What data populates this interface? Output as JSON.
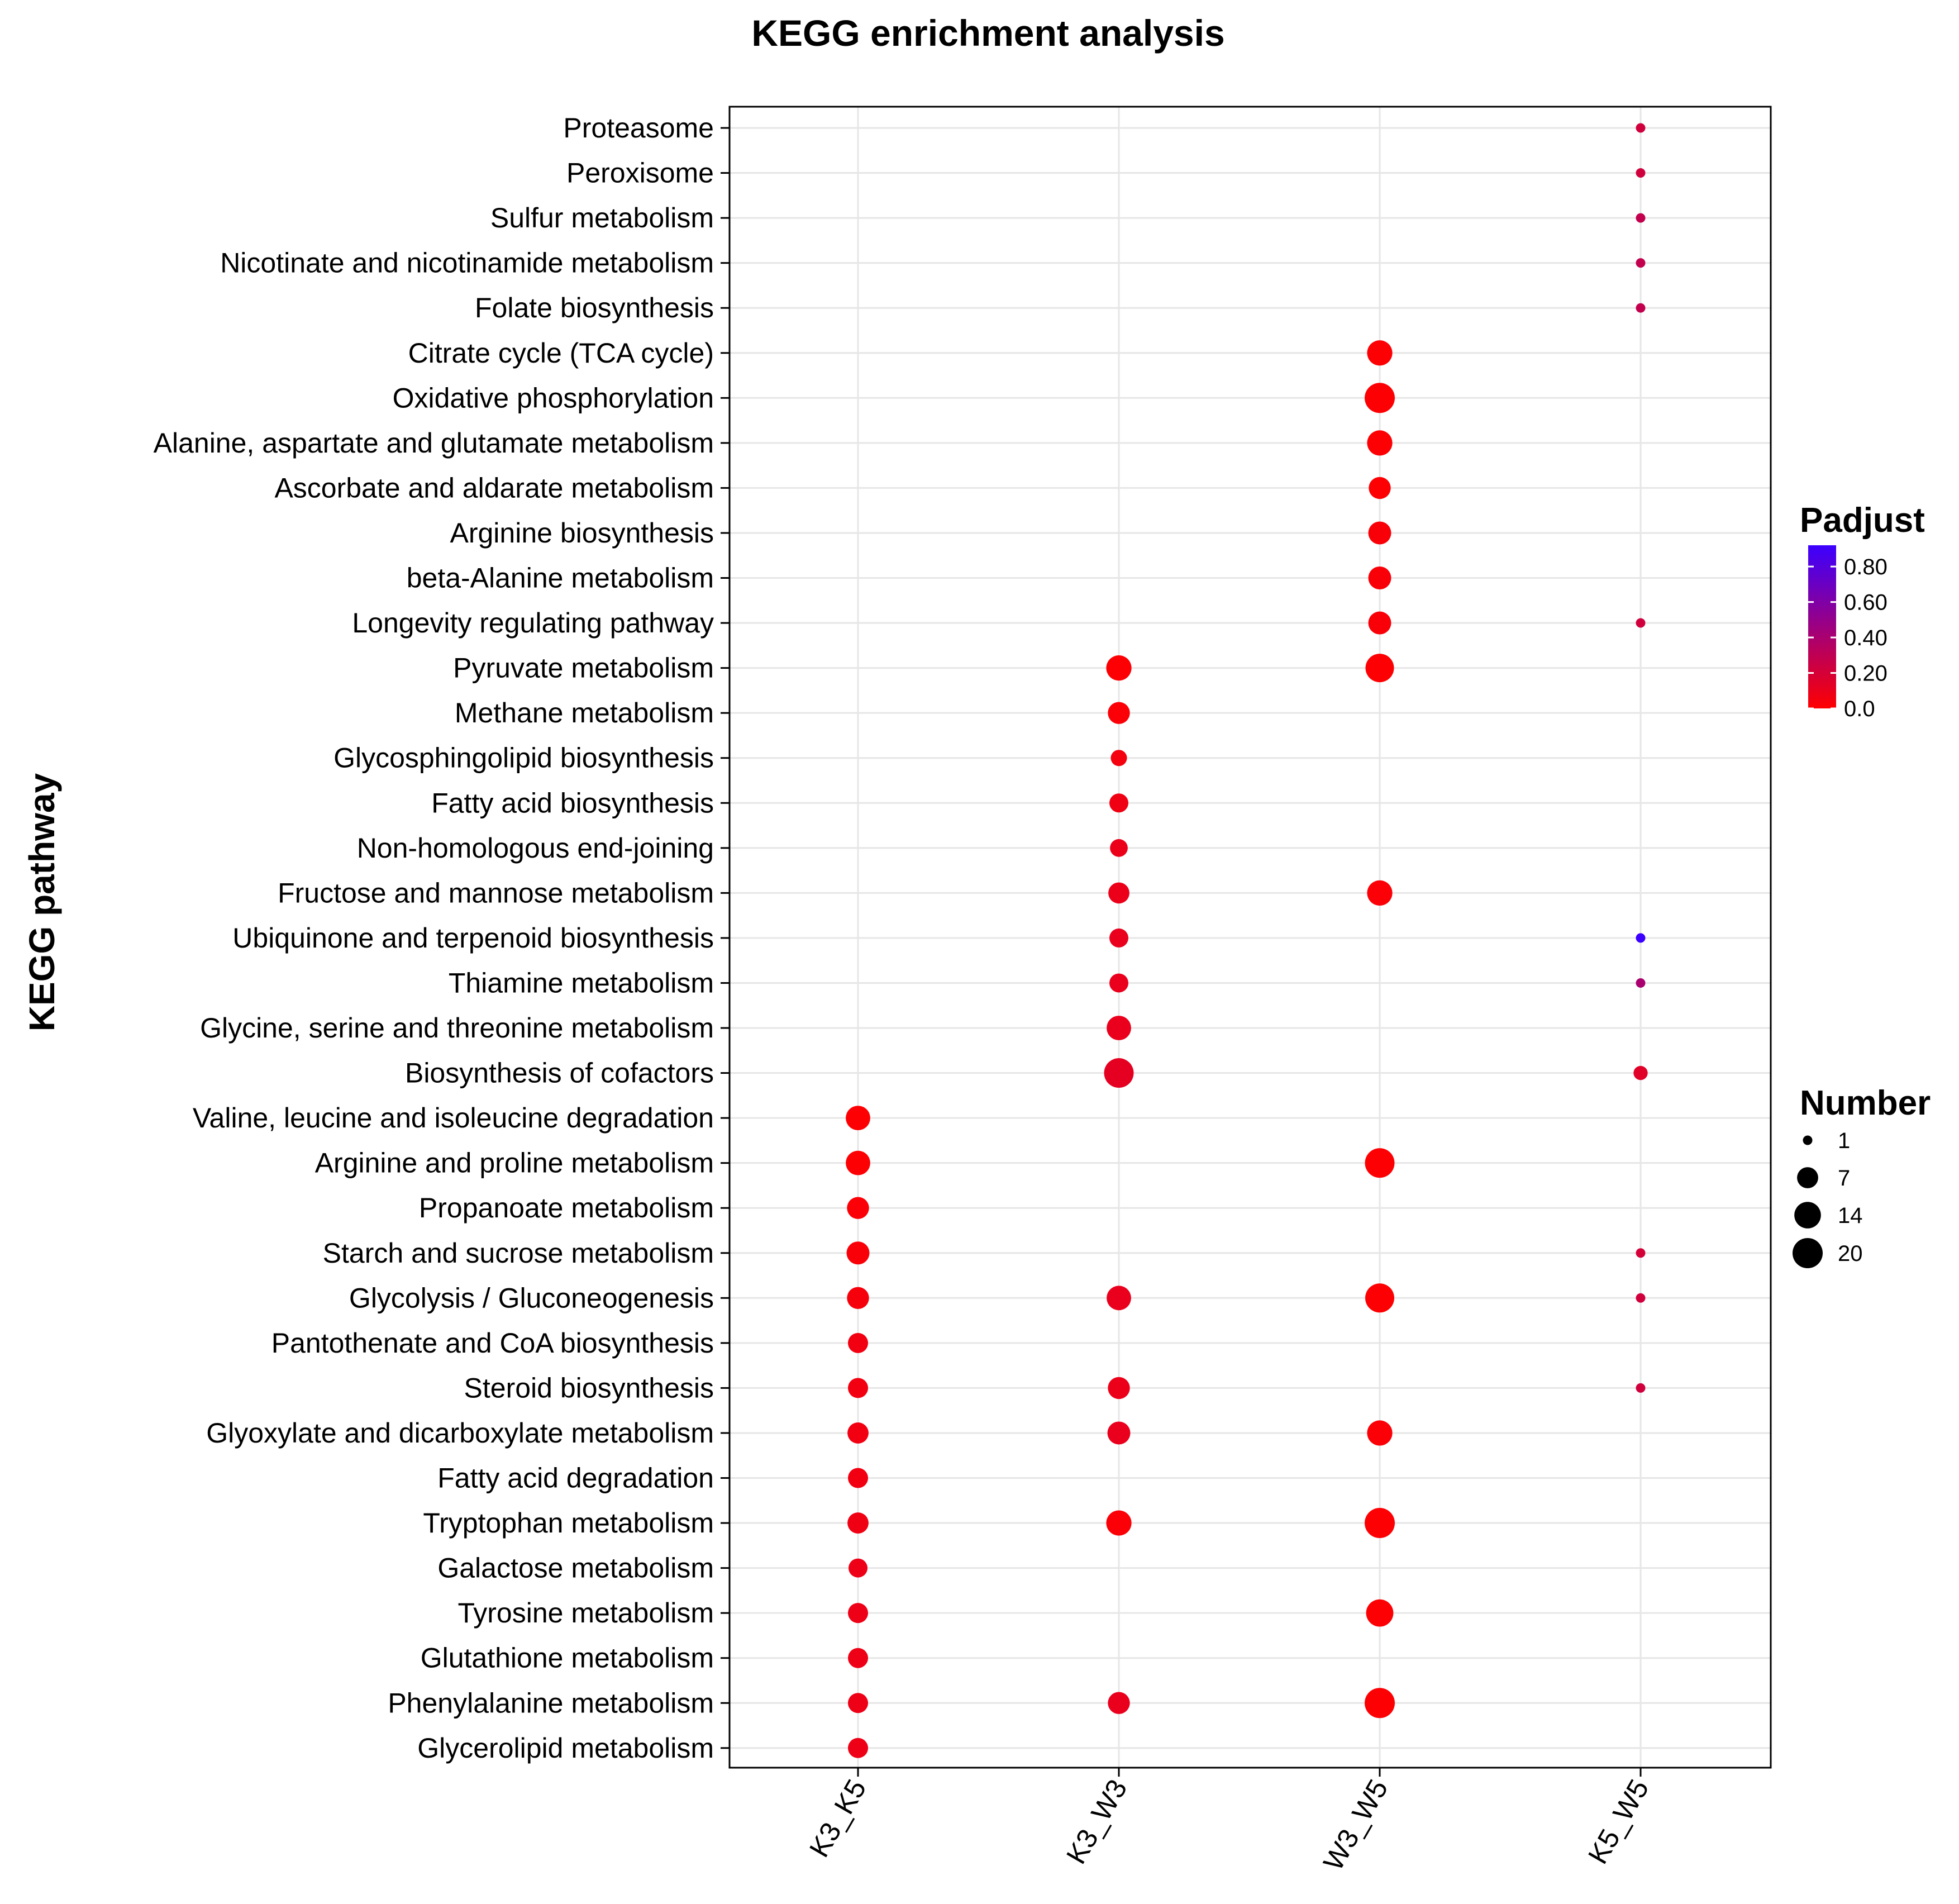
{
  "chart_data": {
    "type": "scatter",
    "title": "KEGG enrichment analysis",
    "xlabel": "",
    "ylabel": "KEGG pathway",
    "grid": true,
    "categories_x": [
      "K3_K5",
      "K3_W3",
      "W3_W5",
      "K5_W5"
    ],
    "categories_y": [
      "Proteasome",
      "Peroxisome",
      "Sulfur metabolism",
      "Nicotinate and nicotinamide metabolism",
      "Folate biosynthesis",
      "Citrate cycle (TCA cycle)",
      "Oxidative phosphorylation",
      "Alanine, aspartate and glutamate metabolism",
      "Ascorbate and aldarate metabolism",
      "Arginine biosynthesis",
      "beta-Alanine metabolism",
      "Longevity regulating pathway",
      "Pyruvate metabolism",
      "Methane metabolism",
      "Glycosphingolipid biosynthesis",
      "Fatty acid biosynthesis",
      "Non-homologous end-joining",
      "Fructose and mannose metabolism",
      "Ubiquinone and terpenoid biosynthesis",
      "Thiamine metabolism",
      "Glycine, serine and threonine metabolism",
      "Biosynthesis of cofactors",
      "Valine, leucine and isoleucine degradation",
      "Arginine and proline metabolism",
      "Propanoate metabolism",
      "Starch and sucrose metabolism",
      "Glycolysis / Gluconeogenesis",
      "Pantothenate and CoA biosynthesis",
      "Steroid biosynthesis",
      "Glyoxylate and dicarboxylate metabolism",
      "Fatty acid degradation",
      "Tryptophan metabolism",
      "Galactose metabolism",
      "Tyrosine metabolism",
      "Glutathione metabolism",
      "Phenylalanine metabolism",
      "Glycerolipid metabolism"
    ],
    "points": [
      {
        "pathway": "Proteasome",
        "group": "K5_W5",
        "number": 1,
        "padjust": 0.22
      },
      {
        "pathway": "Peroxisome",
        "group": "K5_W5",
        "number": 1,
        "padjust": 0.22
      },
      {
        "pathway": "Sulfur metabolism",
        "group": "K5_W5",
        "number": 1,
        "padjust": 0.28
      },
      {
        "pathway": "Nicotinate and nicotinamide metabolism",
        "group": "K5_W5",
        "number": 1,
        "padjust": 0.28
      },
      {
        "pathway": "Folate biosynthesis",
        "group": "K5_W5",
        "number": 1,
        "padjust": 0.28
      },
      {
        "pathway": "Citrate cycle (TCA cycle)",
        "group": "W3_W5",
        "number": 12,
        "padjust": 0.01
      },
      {
        "pathway": "Oxidative phosphorylation",
        "group": "W3_W5",
        "number": 20,
        "padjust": 0.01
      },
      {
        "pathway": "Alanine, aspartate and glutamate metabolism",
        "group": "W3_W5",
        "number": 12,
        "padjust": 0.01
      },
      {
        "pathway": "Ascorbate and aldarate metabolism",
        "group": "W3_W5",
        "number": 8,
        "padjust": 0.01
      },
      {
        "pathway": "Arginine biosynthesis",
        "group": "W3_W5",
        "number": 9,
        "padjust": 0.03
      },
      {
        "pathway": "beta-Alanine metabolism",
        "group": "W3_W5",
        "number": 9,
        "padjust": 0.03
      },
      {
        "pathway": "Longevity regulating pathway",
        "group": "W3_W5",
        "number": 9,
        "padjust": 0.03
      },
      {
        "pathway": "Longevity regulating pathway",
        "group": "K5_W5",
        "number": 1,
        "padjust": 0.22
      },
      {
        "pathway": "Pyruvate metabolism",
        "group": "K3_W3",
        "number": 12,
        "padjust": 0.01
      },
      {
        "pathway": "Pyruvate metabolism",
        "group": "W3_W5",
        "number": 17,
        "padjust": 0.01
      },
      {
        "pathway": "Methane metabolism",
        "group": "K3_W3",
        "number": 8,
        "padjust": 0.02
      },
      {
        "pathway": "Glycosphingolipid biosynthesis",
        "group": "K3_W3",
        "number": 3,
        "padjust": 0.05
      },
      {
        "pathway": "Fatty acid biosynthesis",
        "group": "K3_W3",
        "number": 5,
        "padjust": 0.07
      },
      {
        "pathway": "Non-homologous end-joining",
        "group": "K3_W3",
        "number": 4,
        "padjust": 0.09
      },
      {
        "pathway": "Fructose and mannose metabolism",
        "group": "K3_W3",
        "number": 7,
        "padjust": 0.09
      },
      {
        "pathway": "Fructose and mannose metabolism",
        "group": "W3_W5",
        "number": 12,
        "padjust": 0.02
      },
      {
        "pathway": "Ubiquinone and terpenoid biosynthesis",
        "group": "K3_W3",
        "number": 5,
        "padjust": 0.1
      },
      {
        "pathway": "Ubiquinone and terpenoid biosynthesis",
        "group": "K5_W5",
        "number": 1,
        "padjust": 0.92
      },
      {
        "pathway": "Thiamine metabolism",
        "group": "K3_W3",
        "number": 5,
        "padjust": 0.1
      },
      {
        "pathway": "Thiamine metabolism",
        "group": "K5_W5",
        "number": 1,
        "padjust": 0.4
      },
      {
        "pathway": "Glycine, serine and threonine metabolism",
        "group": "K3_W3",
        "number": 11,
        "padjust": 0.1
      },
      {
        "pathway": "Biosynthesis of cofactors",
        "group": "K3_W3",
        "number": 19,
        "padjust": 0.12
      },
      {
        "pathway": "Biosynthesis of cofactors",
        "group": "K5_W5",
        "number": 2,
        "padjust": 0.14
      },
      {
        "pathway": "Valine, leucine and isoleucine degradation",
        "group": "K3_K5",
        "number": 11,
        "padjust": 0.01
      },
      {
        "pathway": "Arginine and proline metabolism",
        "group": "K3_K5",
        "number": 11,
        "padjust": 0.01
      },
      {
        "pathway": "Arginine and proline metabolism",
        "group": "W3_W5",
        "number": 19,
        "padjust": 0.01
      },
      {
        "pathway": "Propanoate metabolism",
        "group": "K3_K5",
        "number": 8,
        "padjust": 0.02
      },
      {
        "pathway": "Starch and sucrose metabolism",
        "group": "K3_K5",
        "number": 9,
        "padjust": 0.03
      },
      {
        "pathway": "Starch and sucrose metabolism",
        "group": "K5_W5",
        "number": 1,
        "padjust": 0.2
      },
      {
        "pathway": "Glycolysis / Gluconeogenesis",
        "group": "K3_K5",
        "number": 8,
        "padjust": 0.04
      },
      {
        "pathway": "Glycolysis / Gluconeogenesis",
        "group": "K3_W3",
        "number": 11,
        "padjust": 0.1
      },
      {
        "pathway": "Glycolysis / Gluconeogenesis",
        "group": "W3_W5",
        "number": 18,
        "padjust": 0.01
      },
      {
        "pathway": "Glycolysis / Gluconeogenesis",
        "group": "K5_W5",
        "number": 1,
        "padjust": 0.22
      },
      {
        "pathway": "Pantothenate and CoA biosynthesis",
        "group": "K3_K5",
        "number": 6,
        "padjust": 0.06
      },
      {
        "pathway": "Steroid biosynthesis",
        "group": "K3_K5",
        "number": 6,
        "padjust": 0.06
      },
      {
        "pathway": "Steroid biosynthesis",
        "group": "K3_W3",
        "number": 8,
        "padjust": 0.09
      },
      {
        "pathway": "Steroid biosynthesis",
        "group": "K5_W5",
        "number": 1,
        "padjust": 0.22
      },
      {
        "pathway": "Glyoxylate and dicarboxylate metabolism",
        "group": "K3_K5",
        "number": 7,
        "padjust": 0.06
      },
      {
        "pathway": "Glyoxylate and dicarboxylate metabolism",
        "group": "K3_W3",
        "number": 9,
        "padjust": 0.1
      },
      {
        "pathway": "Glyoxylate and dicarboxylate metabolism",
        "group": "W3_W5",
        "number": 12,
        "padjust": 0.02
      },
      {
        "pathway": "Fatty acid degradation",
        "group": "K3_K5",
        "number": 6,
        "padjust": 0.06
      },
      {
        "pathway": "Tryptophan metabolism",
        "group": "K3_K5",
        "number": 7,
        "padjust": 0.07
      },
      {
        "pathway": "Tryptophan metabolism",
        "group": "K3_W3",
        "number": 12,
        "padjust": 0.02
      },
      {
        "pathway": "Tryptophan metabolism",
        "group": "W3_W5",
        "number": 20,
        "padjust": 0.01
      },
      {
        "pathway": "Galactose metabolism",
        "group": "K3_K5",
        "number": 5,
        "padjust": 0.08
      },
      {
        "pathway": "Tyrosine metabolism",
        "group": "K3_K5",
        "number": 6,
        "padjust": 0.08
      },
      {
        "pathway": "Tyrosine metabolism",
        "group": "W3_W5",
        "number": 15,
        "padjust": 0.01
      },
      {
        "pathway": "Glutathione metabolism",
        "group": "K3_K5",
        "number": 6,
        "padjust": 0.08
      },
      {
        "pathway": "Phenylalanine metabolism",
        "group": "K3_K5",
        "number": 6,
        "padjust": 0.08
      },
      {
        "pathway": "Phenylalanine metabolism",
        "group": "K3_W3",
        "number": 8,
        "padjust": 0.1
      },
      {
        "pathway": "Phenylalanine metabolism",
        "group": "W3_W5",
        "number": 20,
        "padjust": 0.01
      },
      {
        "pathway": "Glycerolipid metabolism",
        "group": "K3_K5",
        "number": 6,
        "padjust": 0.08
      }
    ],
    "color_legend": {
      "title": "Padjust",
      "range": [
        0.0,
        0.92
      ],
      "ticks": [
        "0.80",
        "0.60",
        "0.40",
        "0.20",
        "0.0"
      ],
      "tick_values": [
        0.8,
        0.6,
        0.4,
        0.2,
        0.0
      ],
      "low_color": "#ff0000",
      "high_color": "#3b00ff"
    },
    "size_legend": {
      "title": "Number",
      "values": [
        1,
        7,
        14,
        20
      ],
      "labels": [
        "1",
        "7",
        "14",
        "20"
      ]
    },
    "colors": {
      "grid": "#e6e6e6",
      "panel_border": "#000000",
      "background": "#ffffff"
    }
  }
}
